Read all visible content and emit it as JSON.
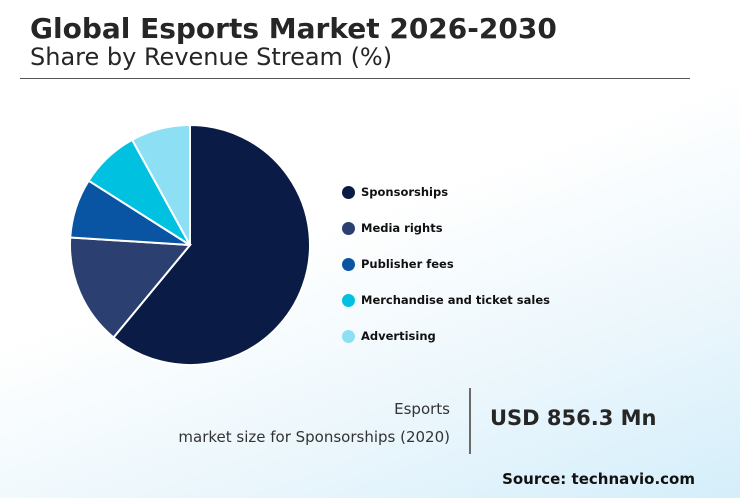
{
  "header": {
    "title": "Global Esports Market 2026-2030",
    "subtitle": "Share by Revenue Stream (%)"
  },
  "chart_data": {
    "type": "pie",
    "title": "Global Esports Market 2026-2030",
    "subtitle": "Share by Revenue Stream (%)",
    "categories": [
      "Sponsorships",
      "Media rights",
      "Publisher fees",
      "Merchandise and ticket sales",
      "Advertising"
    ],
    "values": [
      61,
      15,
      8,
      8,
      8
    ],
    "colors": [
      "#0a1c45",
      "#2b3f70",
      "#0a54a4",
      "#00c2e0",
      "#8de0f3"
    ],
    "legend_position": "right",
    "start_angle_deg": 0,
    "direction": "clockwise"
  },
  "stat": {
    "label_line1": "Esports",
    "label_line2": "market size for Sponsorships (2020)",
    "value": "USD 856.3 Mn"
  },
  "source": "Source: technavio.com"
}
